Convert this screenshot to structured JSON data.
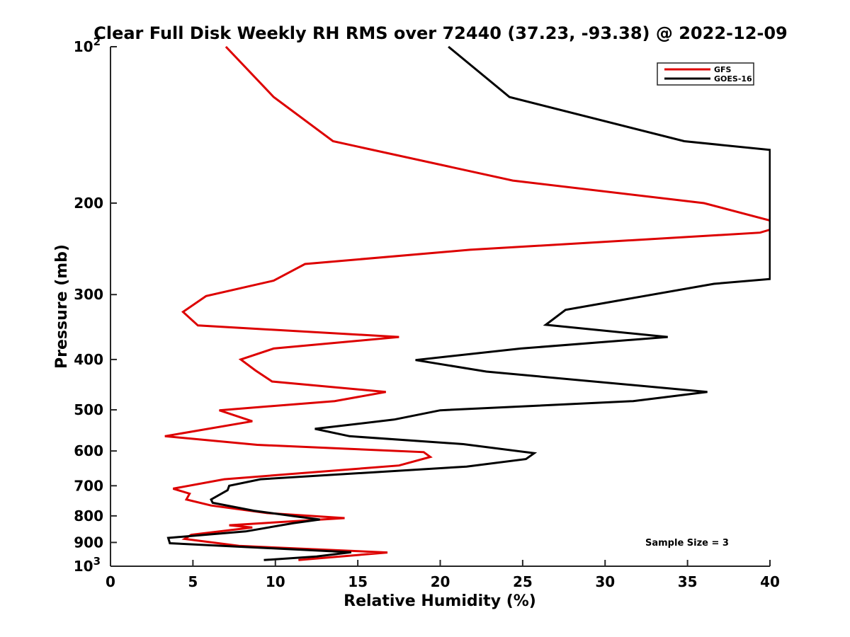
{
  "chart_data": {
    "type": "line",
    "title": "Clear Full Disk Weekly RH RMS over 72440 (37.23, -93.38) @ 2022-12-09",
    "xlabel": "Relative Humidity (%)",
    "ylabel": "Pressure (mb)",
    "xlim": [
      0,
      40
    ],
    "ylim": [
      100,
      1000
    ],
    "y_scale": "log",
    "y_reversed": true,
    "grid": false,
    "legend_position": "top-right",
    "x_ticks": [
      0,
      5,
      10,
      15,
      20,
      25,
      30,
      35,
      40
    ],
    "y_ticks": [
      {
        "value": 100,
        "label": "10",
        "sup": "2"
      },
      {
        "value": 200,
        "label": "200",
        "sup": ""
      },
      {
        "value": 300,
        "label": "300",
        "sup": ""
      },
      {
        "value": 400,
        "label": "400",
        "sup": ""
      },
      {
        "value": 500,
        "label": "500",
        "sup": ""
      },
      {
        "value": 600,
        "label": "600",
        "sup": ""
      },
      {
        "value": 700,
        "label": "700",
        "sup": ""
      },
      {
        "value": 800,
        "label": "800",
        "sup": ""
      },
      {
        "value": 900,
        "label": "900",
        "sup": ""
      },
      {
        "value": 1000,
        "label": "10",
        "sup": "3"
      }
    ],
    "annotation": "Sample Size = 3",
    "series": [
      {
        "name": "GFS",
        "color": "#dd0000",
        "points": [
          [
            7,
            100
          ],
          [
            9.9,
            125
          ],
          [
            13.5,
            152
          ],
          [
            24.4,
            181
          ],
          [
            36,
            200
          ],
          [
            40,
            216
          ],
          [
            40,
            225
          ],
          [
            39.4,
            228
          ],
          [
            21.8,
            246
          ],
          [
            11.8,
            262
          ],
          [
            9.9,
            282
          ],
          [
            5.8,
            302
          ],
          [
            4.4,
            324
          ],
          [
            5.3,
            344
          ],
          [
            17.5,
            362
          ],
          [
            9.9,
            381
          ],
          [
            7.9,
            400
          ],
          [
            8.8,
            420
          ],
          [
            9.8,
            441
          ],
          [
            16.7,
            462
          ],
          [
            13.6,
            481
          ],
          [
            6.6,
            501
          ],
          [
            8.6,
            526
          ],
          [
            3.3,
            562
          ],
          [
            8.9,
            584
          ],
          [
            19,
            603
          ],
          [
            19.4,
            616
          ],
          [
            17.5,
            640
          ],
          [
            6.9,
            680
          ],
          [
            3.8,
            709
          ],
          [
            4.8,
            725
          ],
          [
            4.6,
            744
          ],
          [
            6.1,
            764
          ],
          [
            9.5,
            790
          ],
          [
            14.2,
            808
          ],
          [
            7.2,
            834
          ],
          [
            8.6,
            842
          ],
          [
            4.9,
            870
          ],
          [
            4.5,
            886
          ],
          [
            7.8,
            914
          ],
          [
            16.8,
            941
          ],
          [
            11.4,
            973
          ]
        ]
      },
      {
        "name": "GOES-16",
        "color": "#000000",
        "points": [
          [
            20.5,
            100
          ],
          [
            24.2,
            125
          ],
          [
            34.8,
            152
          ],
          [
            40,
            158
          ],
          [
            40,
            280
          ],
          [
            36.6,
            286
          ],
          [
            27.6,
            321
          ],
          [
            26.4,
            343
          ],
          [
            33.8,
            362
          ],
          [
            24.9,
            381
          ],
          [
            18.5,
            401
          ],
          [
            22.8,
            422
          ],
          [
            36.2,
            462
          ],
          [
            31.7,
            481
          ],
          [
            20,
            501
          ],
          [
            17.2,
            522
          ],
          [
            12.4,
            544
          ],
          [
            14.5,
            562
          ],
          [
            21.4,
            582
          ],
          [
            25.7,
            606
          ],
          [
            25.2,
            622
          ],
          [
            21.6,
            643
          ],
          [
            9.1,
            680
          ],
          [
            7.2,
            700
          ],
          [
            7.1,
            714
          ],
          [
            6.1,
            744
          ],
          [
            6.2,
            755
          ],
          [
            8.7,
            782
          ],
          [
            11.4,
            803
          ],
          [
            12.7,
            813
          ],
          [
            11.1,
            826
          ],
          [
            8.2,
            857
          ],
          [
            3.5,
            882
          ],
          [
            3.6,
            903
          ],
          [
            14.6,
            940
          ],
          [
            12.5,
            958
          ],
          [
            9.3,
            973
          ]
        ]
      }
    ]
  }
}
